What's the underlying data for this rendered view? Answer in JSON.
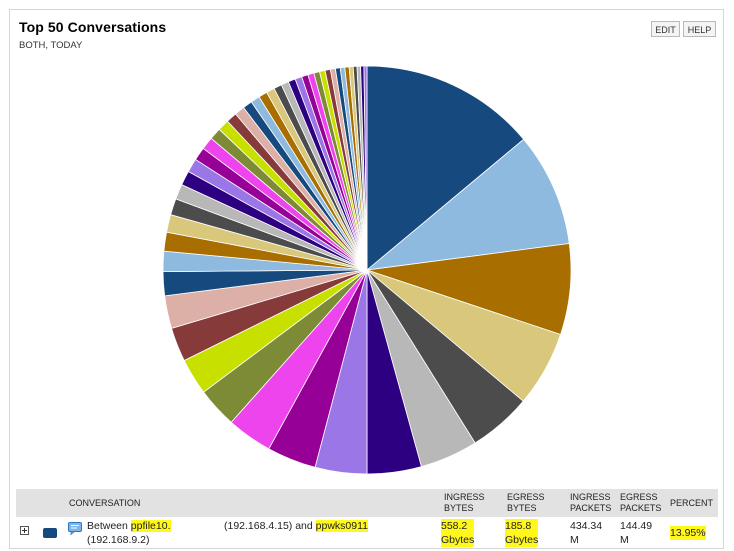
{
  "header": {
    "title": "Top 50 Conversations",
    "subtitle": "BOTH, TODAY",
    "edit_label": "EDIT",
    "help_label": "HELP"
  },
  "chart_data": {
    "type": "pie",
    "title": "Top 50 Conversations",
    "slices": [
      {
        "label": "Between ppfile10 and ppwks0911",
        "percent": 13.95,
        "color": "#164a7e"
      },
      {
        "label": "",
        "percent": 9.0,
        "color": "#8fbadf"
      },
      {
        "label": "",
        "percent": 7.2,
        "color": "#a86e00"
      },
      {
        "label": "",
        "percent": 6.0,
        "color": "#d9c77b"
      },
      {
        "label": "",
        "percent": 5.0,
        "color": "#4c4c4c"
      },
      {
        "label": "",
        "percent": 4.6,
        "color": "#b8b8b8"
      },
      {
        "label": "",
        "percent": 4.3,
        "color": "#2d0082"
      },
      {
        "label": "",
        "percent": 4.1,
        "color": "#9b76e6"
      },
      {
        "label": "",
        "percent": 3.9,
        "color": "#960096"
      },
      {
        "label": "",
        "percent": 3.6,
        "color": "#ee44ee"
      },
      {
        "label": "",
        "percent": 3.2,
        "color": "#7d8b36"
      },
      {
        "label": "",
        "percent": 2.9,
        "color": "#c8e000"
      },
      {
        "label": "",
        "percent": 2.7,
        "color": "#863a3a"
      },
      {
        "label": "",
        "percent": 2.6,
        "color": "#dcb0a6"
      },
      {
        "label": "",
        "percent": 1.9,
        "color": "#164a7e"
      },
      {
        "label": "",
        "percent": 1.6,
        "color": "#8fbadf"
      },
      {
        "label": "",
        "percent": 1.5,
        "color": "#a86e00"
      },
      {
        "label": "",
        "percent": 1.4,
        "color": "#d9c77b"
      },
      {
        "label": "",
        "percent": 1.3,
        "color": "#4c4c4c"
      },
      {
        "label": "",
        "percent": 1.2,
        "color": "#b8b8b8"
      },
      {
        "label": "",
        "percent": 1.15,
        "color": "#2d0082"
      },
      {
        "label": "",
        "percent": 1.1,
        "color": "#9b76e6"
      },
      {
        "label": "",
        "percent": 1.05,
        "color": "#960096"
      },
      {
        "label": "",
        "percent": 1.0,
        "color": "#ee44ee"
      },
      {
        "label": "",
        "percent": 0.95,
        "color": "#7d8b36"
      },
      {
        "label": "",
        "percent": 0.9,
        "color": "#c8e000"
      },
      {
        "label": "",
        "percent": 0.85,
        "color": "#863a3a"
      },
      {
        "label": "",
        "percent": 0.8,
        "color": "#dcb0a6"
      },
      {
        "label": "",
        "percent": 0.75,
        "color": "#164a7e"
      },
      {
        "label": "",
        "percent": 0.72,
        "color": "#8fbadf"
      },
      {
        "label": "",
        "percent": 0.69,
        "color": "#a86e00"
      },
      {
        "label": "",
        "percent": 0.66,
        "color": "#d9c77b"
      },
      {
        "label": "",
        "percent": 0.63,
        "color": "#4c4c4c"
      },
      {
        "label": "",
        "percent": 0.6,
        "color": "#b8b8b8"
      },
      {
        "label": "",
        "percent": 0.57,
        "color": "#2d0082"
      },
      {
        "label": "",
        "percent": 0.54,
        "color": "#9b76e6"
      },
      {
        "label": "",
        "percent": 0.51,
        "color": "#960096"
      },
      {
        "label": "",
        "percent": 0.48,
        "color": "#ee44ee"
      },
      {
        "label": "",
        "percent": 0.46,
        "color": "#7d8b36"
      },
      {
        "label": "",
        "percent": 0.44,
        "color": "#c8e000"
      },
      {
        "label": "",
        "percent": 0.42,
        "color": "#863a3a"
      },
      {
        "label": "",
        "percent": 0.4,
        "color": "#dcb0a6"
      },
      {
        "label": "",
        "percent": 0.38,
        "color": "#164a7e"
      },
      {
        "label": "",
        "percent": 0.36,
        "color": "#8fbadf"
      },
      {
        "label": "",
        "percent": 0.34,
        "color": "#a86e00"
      },
      {
        "label": "",
        "percent": 0.32,
        "color": "#d9c77b"
      },
      {
        "label": "",
        "percent": 0.3,
        "color": "#4c4c4c"
      },
      {
        "label": "",
        "percent": 0.28,
        "color": "#b8b8b8"
      },
      {
        "label": "",
        "percent": 0.26,
        "color": "#2d0082"
      },
      {
        "label": "",
        "percent": 0.24,
        "color": "#9b76e6"
      }
    ]
  },
  "table": {
    "columns": {
      "conversation": "CONVERSATION",
      "ingress_bytes": [
        "INGRESS",
        "BYTES"
      ],
      "egress_bytes": [
        "EGRESS",
        "BYTES"
      ],
      "ingress_packets": [
        "INGRESS",
        "PACKETS"
      ],
      "egress_packets": [
        "EGRESS",
        "PACKETS"
      ],
      "percent": "PERCENT"
    },
    "rows": [
      {
        "color": "#164a7e",
        "conv_prefix": "Between",
        "host_a": "ppfile10.",
        "host_a_ip": "(192.168.9.2)",
        "host_b_ip_and": "(192.168.4.15) and",
        "host_b": "ppwks0911",
        "ingress_bytes": [
          "558.2",
          "Gbytes"
        ],
        "egress_bytes": [
          "185.8",
          "Gbytes"
        ],
        "ingress_packets": [
          "434.34",
          "M"
        ],
        "egress_packets": [
          "144.49",
          "M"
        ],
        "percent": "13.95%"
      }
    ]
  }
}
